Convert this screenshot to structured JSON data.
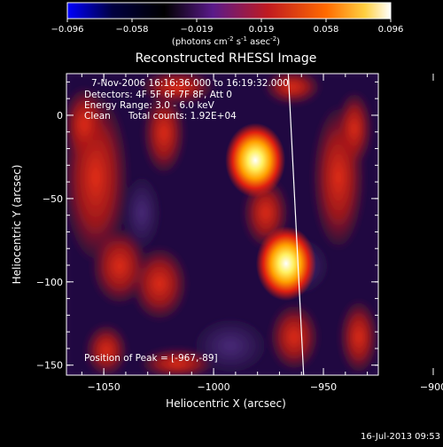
{
  "colorbar": {
    "ticks": [
      "-0.096",
      "-0.058",
      "-0.019",
      "0.019",
      "0.058",
      "0.096"
    ],
    "units_prefix": "(photons cm",
    "units_sup1": "-2",
    "units_mid": " s",
    "units_sup2": "-1",
    "units_mid2": " asec",
    "units_sup3": "-2",
    "units_suffix": ")",
    "stops": [
      "#0000ff",
      "#000040",
      "#000000",
      "#5a1a8a",
      "#c01a20",
      "#ff6a00",
      "#ffd040",
      "#ffffff"
    ]
  },
  "chart_data": {
    "type": "heatmap",
    "title": "Reconstructed RHESSI Image",
    "xlabel": "Heliocentric X (arcsec)",
    "ylabel": "Heliocentric Y (arcsec)",
    "xlim": [
      -1067,
      -925
    ],
    "ylim": [
      -156,
      25
    ],
    "xticks": [
      -1050,
      -1000,
      -950,
      -900
    ],
    "yticks": [
      -150,
      -100,
      -50,
      0
    ],
    "xtick_labels": [
      "−1050",
      "−1000",
      "−950",
      "−900"
    ],
    "ytick_labels": [
      "−150",
      "−100",
      "−50",
      "0"
    ],
    "sources": [
      {
        "x": -981,
        "y": -27,
        "peak": 0.096
      },
      {
        "x": -967,
        "y": -89,
        "peak": 0.096
      }
    ],
    "limb_line": {
      "x_top": -966,
      "x_bottom": -959
    },
    "info_lines": [
      "7-Nov-2006 16:16:36.000 to 16:19:32.000",
      "Detectors: 4F 5F 6F 7F 8F, Att 0",
      "Energy Range: 3.0 - 6.0 keV",
      "Clean      Total counts: 1.92E+04"
    ],
    "peak_label": "Position of Peak = [-967,-89]"
  },
  "footer": {
    "timestamp": "16-Jul-2013 09:53"
  }
}
